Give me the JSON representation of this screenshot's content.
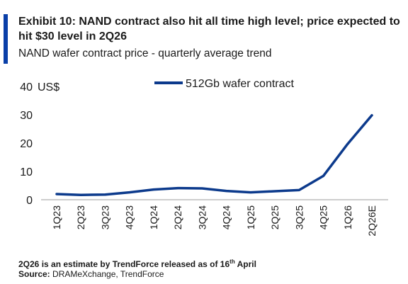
{
  "header": {
    "title": "Exhibit 10: NAND contract also hit all time high level; price expected to hit $30 level in 2Q26",
    "subtitle": "NAND wafer contract price - quarterly average trend"
  },
  "footer": {
    "note_before": "2Q26 is an estimate by TrendForce released as of 16",
    "note_sup": "th",
    "note_after": " April",
    "source_label": "Source:",
    "source_text": " DRAMeXchange, TrendForce"
  },
  "colors": {
    "accent": "#0a3fa8",
    "series": "#0c3a8c",
    "axis": "#bdbdbd"
  },
  "chart_data": {
    "type": "line",
    "title": "",
    "xlabel": "",
    "ylabel": "US$",
    "ylim": [
      0,
      40
    ],
    "yticks": [
      0,
      10,
      20,
      30,
      40
    ],
    "grid": false,
    "legend_position": "top",
    "categories": [
      "1Q23",
      "2Q23",
      "3Q23",
      "4Q23",
      "1Q24",
      "2Q24",
      "3Q24",
      "4Q24",
      "1Q25",
      "2Q25",
      "3Q25",
      "4Q25",
      "1Q26",
      "2Q26E"
    ],
    "series": [
      {
        "name": "512Gb wafer contract",
        "values": [
          2.0,
          1.7,
          1.8,
          2.6,
          3.6,
          4.1,
          4.0,
          3.1,
          2.6,
          3.0,
          3.4,
          8.4,
          19.7,
          29.8
        ]
      }
    ]
  }
}
